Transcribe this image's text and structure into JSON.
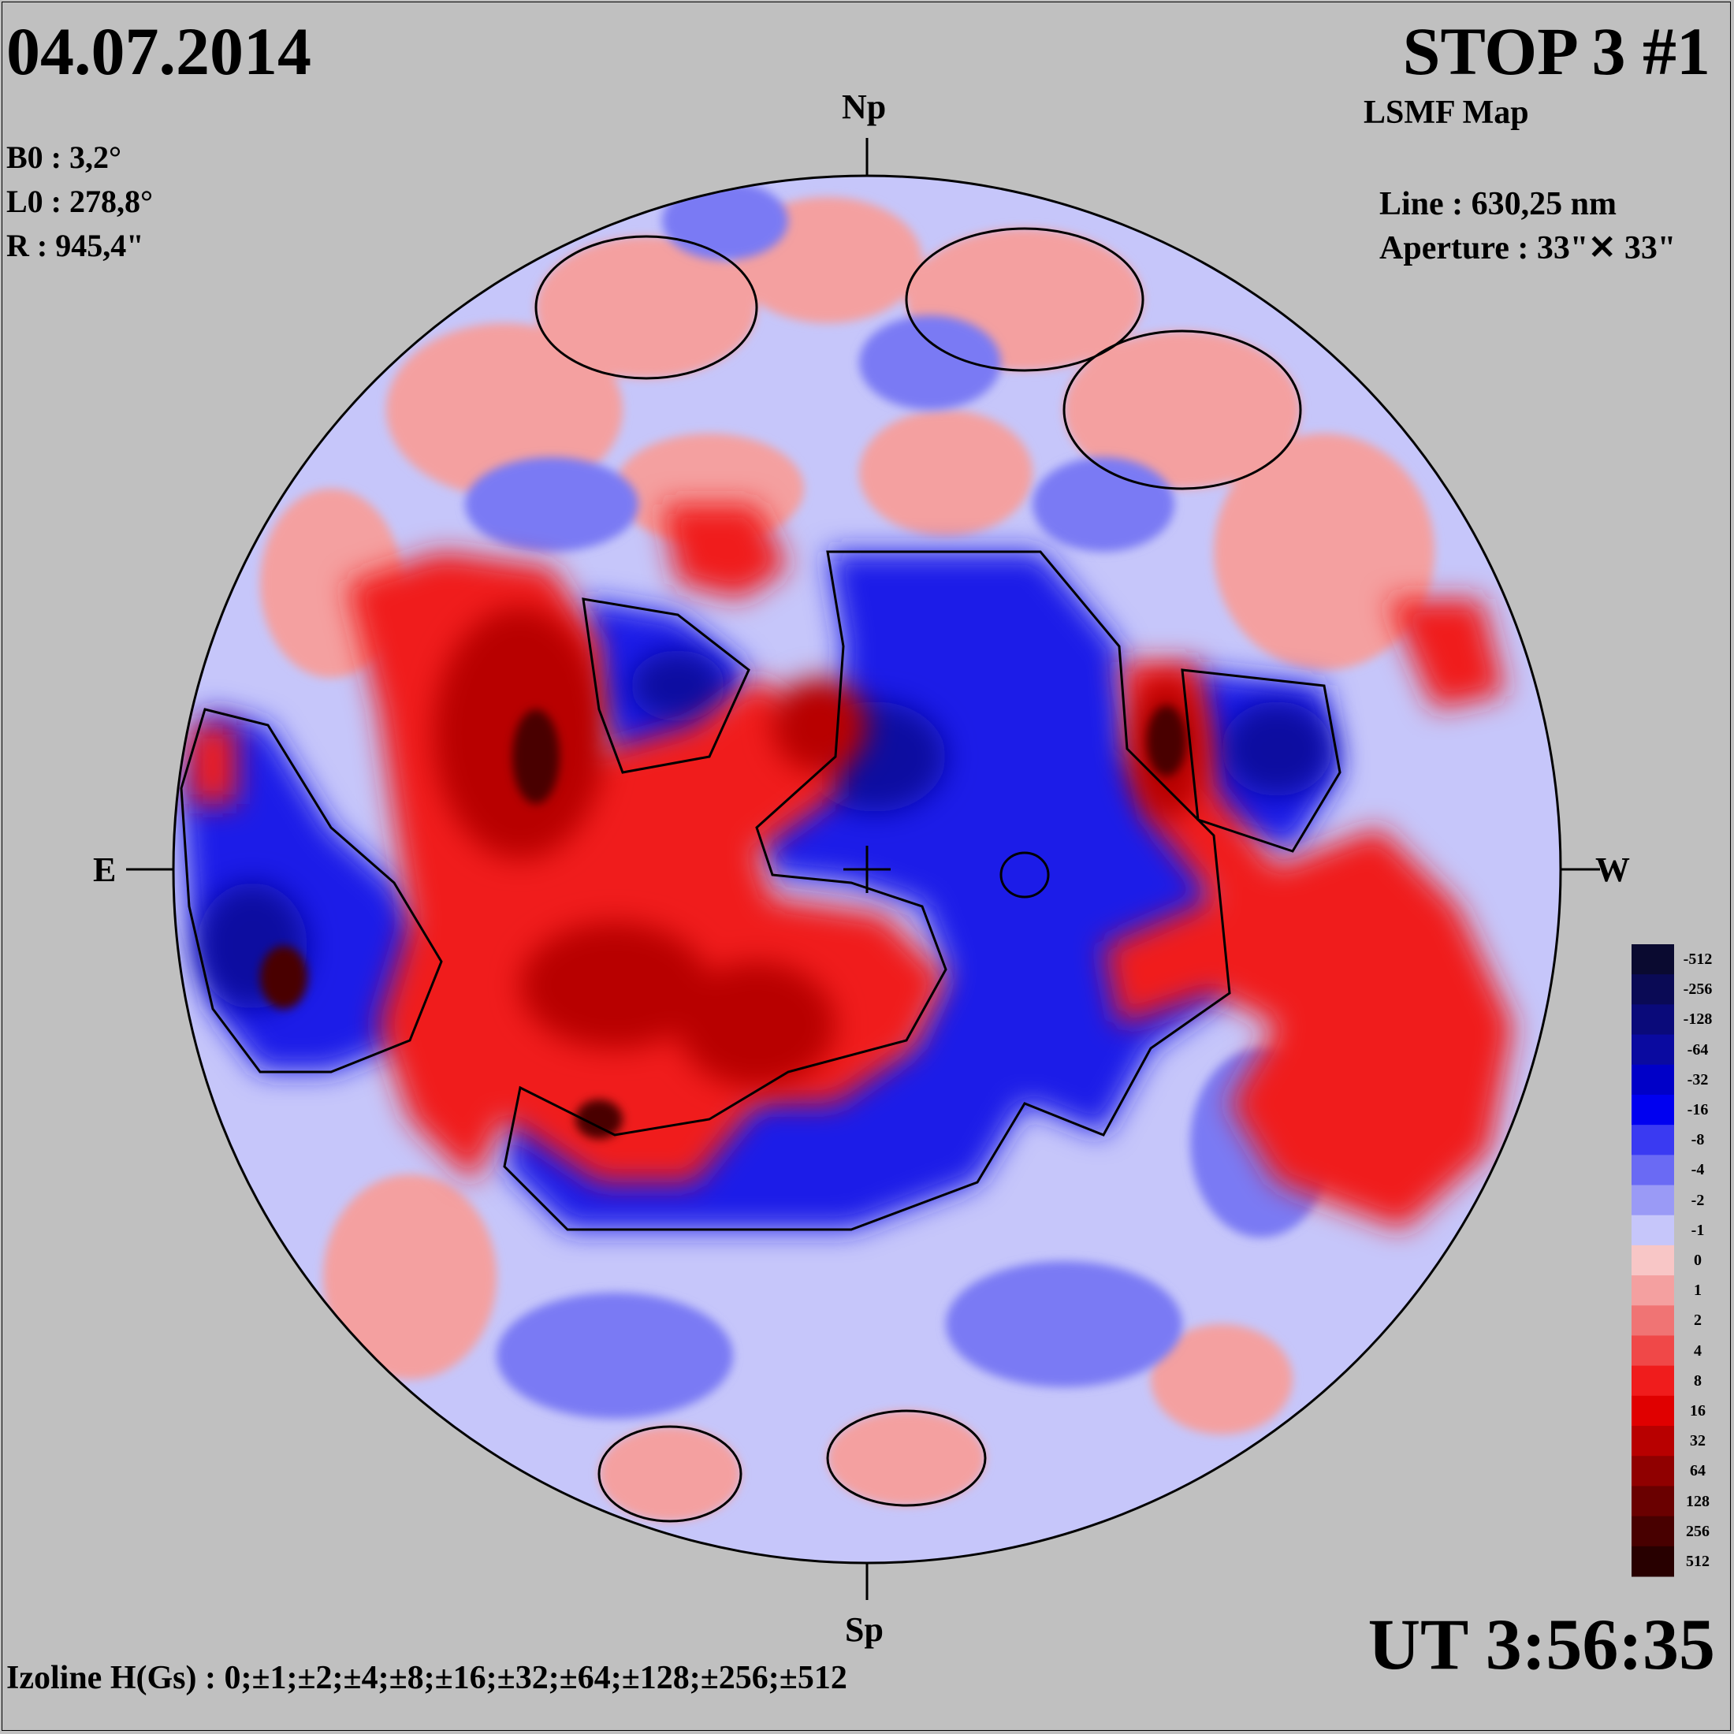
{
  "header": {
    "date": "04.07.2014",
    "title": "STOP 3 #1",
    "subtitle": "LSMF  Map"
  },
  "params": {
    "b0": "B0 : 3,2°",
    "l0": "L0 : 278,8°",
    "r": "R  : 945,4\""
  },
  "instrument": {
    "line": "Line :  630,25 nm",
    "aperture": "Aperture : 33\"✕ 33\""
  },
  "compass": {
    "north": "Np",
    "south": "Sp",
    "east": "E",
    "west": "W"
  },
  "time": "UT 3:56:35",
  "izoline": "Izoline H(Gs) : 0;±1;±2;±4;±8;±16;±32;±64;±128;±256;±512",
  "legend": {
    "levels": [
      {
        "label": "-512",
        "color": "#0a0a30"
      },
      {
        "label": "-256",
        "color": "#0a0a55"
      },
      {
        "label": "-128",
        "color": "#0a0a7a"
      },
      {
        "label": "-64",
        "color": "#0a0aa0"
      },
      {
        "label": "-32",
        "color": "#0000c8"
      },
      {
        "label": "-16",
        "color": "#0000f0"
      },
      {
        "label": "-8",
        "color": "#3a3af2"
      },
      {
        "label": "-4",
        "color": "#6a6af4"
      },
      {
        "label": "-2",
        "color": "#9a9af6"
      },
      {
        "label": "-1",
        "color": "#c6c6fa"
      },
      {
        "label": "0",
        "color": "#f8c6c6"
      },
      {
        "label": "1",
        "color": "#f4a0a0"
      },
      {
        "label": "2",
        "color": "#f07474"
      },
      {
        "label": "4",
        "color": "#f04848"
      },
      {
        "label": "8",
        "color": "#f01c1c"
      },
      {
        "label": "16",
        "color": "#e00000"
      },
      {
        "label": "32",
        "color": "#b80000"
      },
      {
        "label": "64",
        "color": "#900000"
      },
      {
        "label": "128",
        "color": "#6a0000"
      },
      {
        "label": "256",
        "color": "#480000"
      },
      {
        "label": "512",
        "color": "#280000"
      }
    ]
  }
}
